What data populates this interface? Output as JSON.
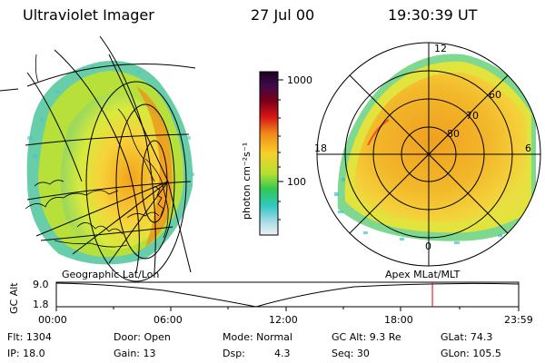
{
  "header": {
    "title": "Ultraviolet Imager",
    "date": "27 Jul 00",
    "time": "19:30:39 UT"
  },
  "colorbar": {
    "unit_label": "photon cm⁻²s⁻¹",
    "ticks": [
      "1000",
      "100"
    ]
  },
  "polar": {
    "mlt_labels": {
      "top": "12",
      "left": "18",
      "right": "6",
      "bottom": "0"
    },
    "lat_labels": [
      "60",
      "70",
      "80"
    ]
  },
  "panels": {
    "left_label": "Geographic Lat/Lon",
    "right_label": "Apex MLat/MLT"
  },
  "timeline": {
    "ylabel": "GC Alt",
    "yticks": [
      "9.0",
      "1.8"
    ],
    "xticks": [
      "00:00",
      "06:00",
      "12:00",
      "18:00",
      "23:59"
    ],
    "marker_time_hours": 19.51,
    "marker_color": "#e00000"
  },
  "info": {
    "flt": "Flt: 1304",
    "ip": "IP: 18.0",
    "door": "Door: Open",
    "gain": "Gain: 13",
    "mode": "Mode: Normal",
    "dsp_label": "Dsp:",
    "dsp_value": "4.3",
    "gcalt": "GC Alt: 9.3 Re",
    "seq": "Seq: 30",
    "glat": "GLat: 74.3",
    "glon": "GLon: 105.5"
  }
}
